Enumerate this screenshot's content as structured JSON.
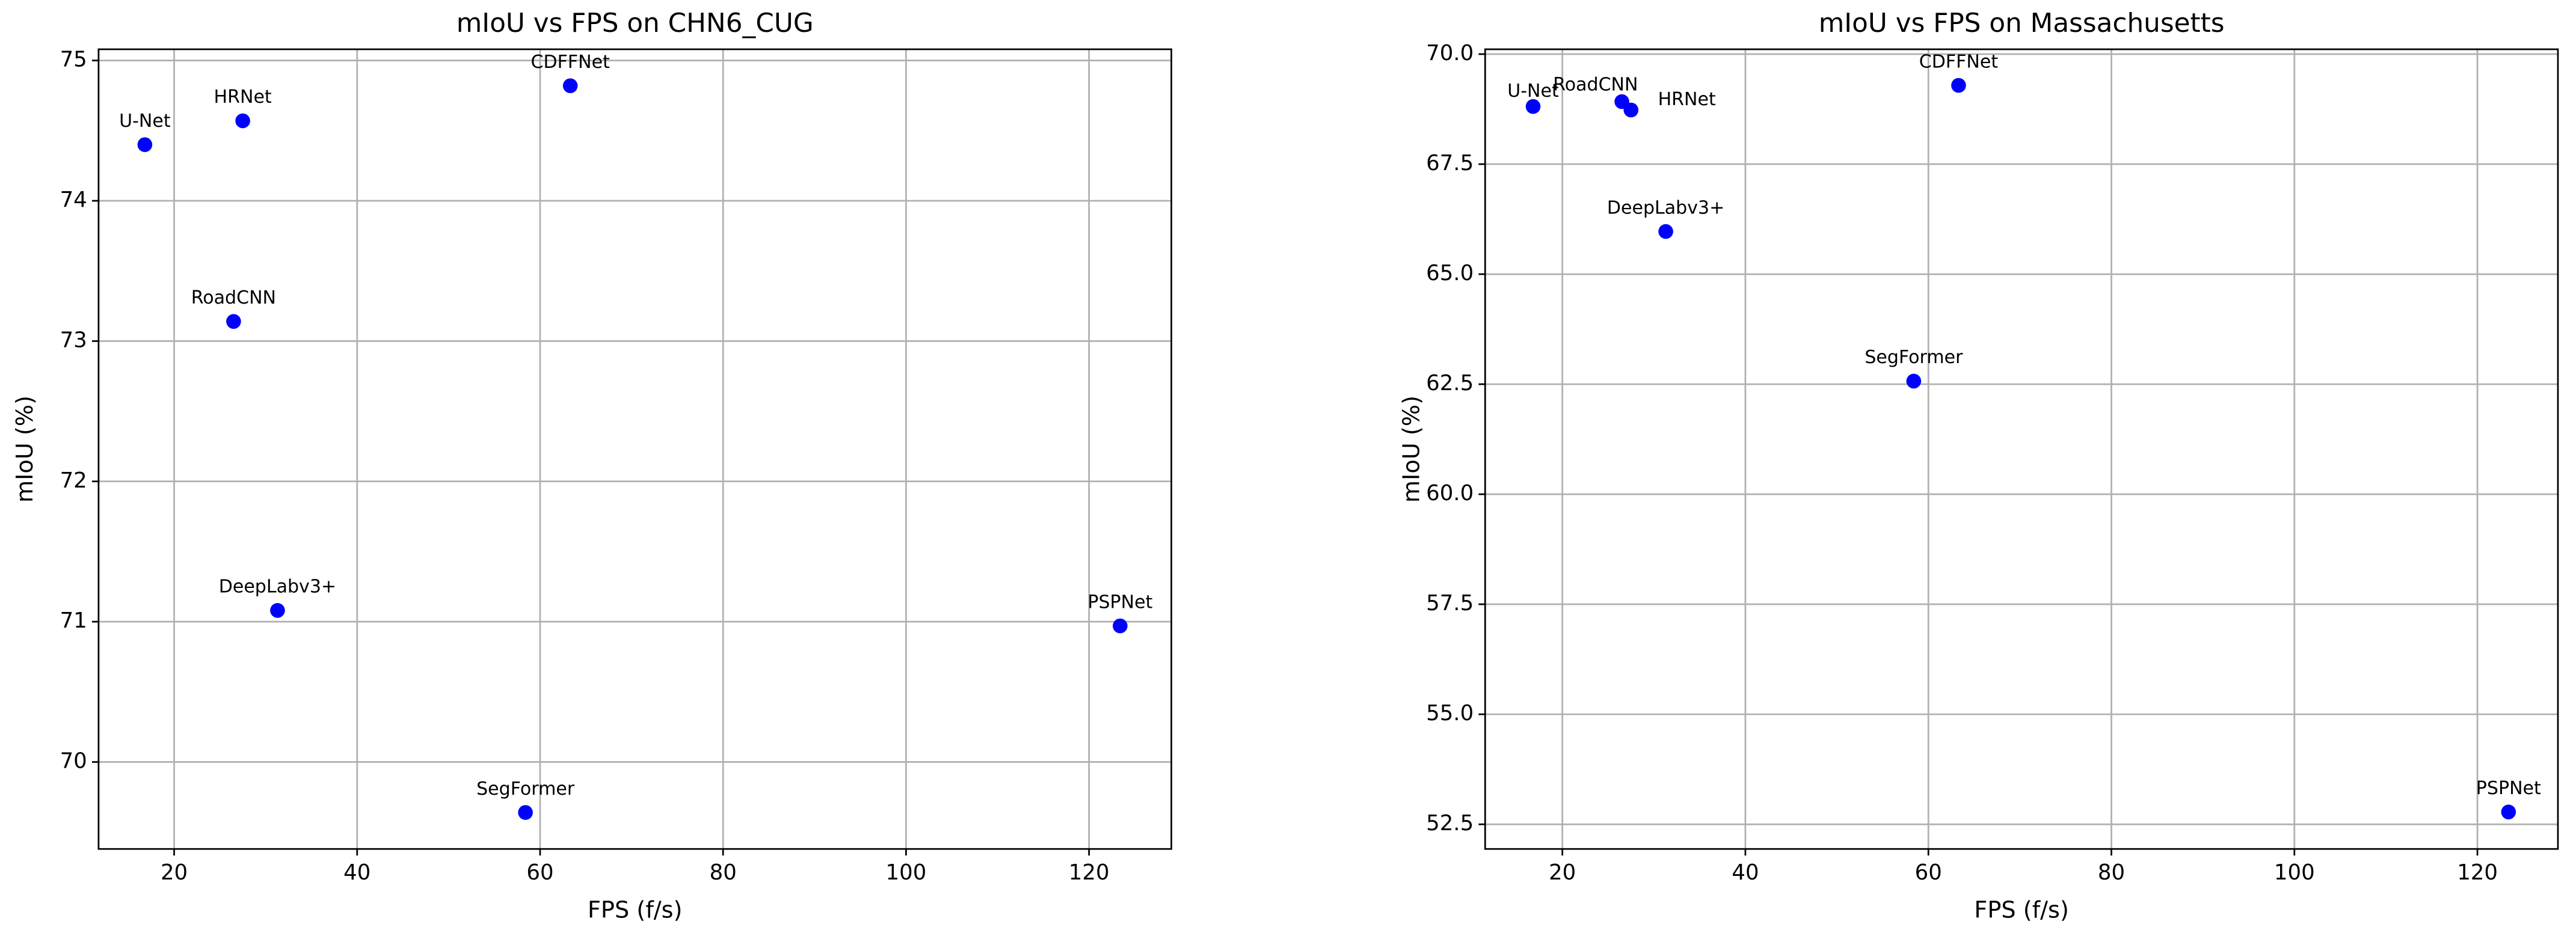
{
  "chart_data": [
    {
      "type": "scatter",
      "title": "mIoU vs FPS on CHN6_CUG",
      "xlabel": "FPS (f/s)",
      "ylabel": "mIoU (%)",
      "color": "#0000ff",
      "grid": true,
      "labels": [
        "U-Net",
        "HRNet",
        "CDFFNet",
        "RoadCNN",
        "DeepLabv3+",
        "PSPNet",
        "SegFormer"
      ],
      "x": [
        16.8,
        27.5,
        63.3,
        26.5,
        31.3,
        123.4,
        58.4
      ],
      "values": [
        74.4,
        74.57,
        74.82,
        73.14,
        71.08,
        70.97,
        69.64
      ],
      "xlim": [
        11.74,
        129.0
      ],
      "ylim": [
        69.38,
        75.08
      ],
      "xticks": [
        20,
        40,
        60,
        80,
        100,
        120
      ],
      "yticks": [
        70,
        71,
        72,
        73,
        74,
        75
      ]
    },
    {
      "type": "scatter",
      "title": "mIoU vs FPS on Massachusetts",
      "xlabel": "FPS (f/s)",
      "ylabel": "mIoU (%)",
      "color": "#0000ff",
      "grid": true,
      "labels": [
        "U-Net",
        "RoadCNN",
        "HRNet",
        "CDFFNet",
        "DeepLabv3+",
        "SegFormer",
        "PSPNet"
      ],
      "x": [
        16.8,
        26.5,
        27.5,
        63.3,
        31.3,
        58.4,
        123.4
      ],
      "values": [
        68.81,
        68.92,
        68.73,
        69.29,
        65.97,
        62.57,
        52.78
      ],
      "xlim": [
        11.56,
        128.8
      ],
      "ylim": [
        51.94,
        70.11
      ],
      "xticks": [
        20,
        40,
        60,
        80,
        100,
        120
      ],
      "yticks": [
        52.5,
        {
          "value": 55,
          "label": "55.0"
        },
        57.5,
        {
          "value": 60,
          "label": "60.0"
        },
        62.5,
        {
          "value": 65,
          "label": "65.0"
        },
        67.5,
        {
          "value": 70,
          "label": "70.0"
        }
      ]
    }
  ]
}
